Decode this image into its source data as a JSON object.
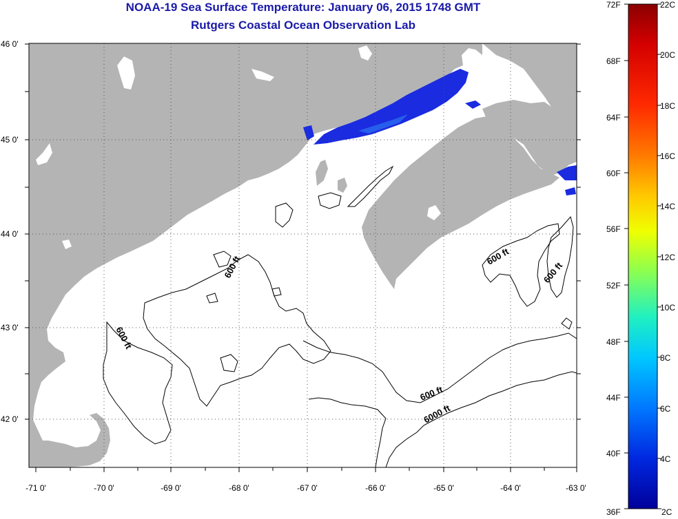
{
  "header": {
    "title": "NOAA-19 Sea Surface Temperature:  January 06, 2015 1748 GMT",
    "subtitle": "Rutgers Coastal Ocean Observation Lab"
  },
  "map": {
    "lat_ticks": [
      "46 0'",
      "45 0'",
      "44 0'",
      "43 0'",
      "42 0'"
    ],
    "lon_ticks": [
      "-71 0'",
      "-70 0'",
      "-69 0'",
      "-68 0'",
      "-67 0'",
      "-66 0'",
      "-65 0'",
      "-64 0'",
      "-63 0'"
    ],
    "contour_labels": [
      "600 ft",
      "600 ft",
      "600 ft",
      "600 ft",
      "600 ft",
      "6000 ft"
    ],
    "colors": {
      "land": "#b4b4b4",
      "ocean": "#ffffff",
      "sst_cold": "#1a2be0",
      "sst_warm": "#2a6cf0"
    }
  },
  "colorbar": {
    "f_labels": [
      "72F",
      "68F",
      "64F",
      "60F",
      "56F",
      "52F",
      "48F",
      "44F",
      "40F",
      "36F"
    ],
    "c_labels": [
      "22C",
      "20C",
      "18C",
      "16C",
      "14C",
      "12C",
      "10C",
      "8C",
      "6C",
      "4C",
      "2C"
    ],
    "gradient": [
      "#8b0000",
      "#d40000",
      "#ff2a00",
      "#ff7a00",
      "#ffc800",
      "#f0ff00",
      "#8cff50",
      "#20f0c0",
      "#00c8ff",
      "#0078ff",
      "#0028e0",
      "#00009a"
    ]
  }
}
